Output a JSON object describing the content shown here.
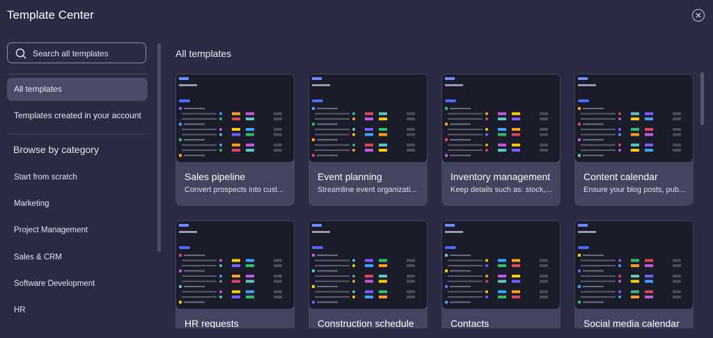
{
  "header": {
    "title": "Template Center"
  },
  "sidebar": {
    "search_placeholder": "Search all templates",
    "nav": [
      "All templates",
      "Templates created in your account"
    ],
    "section_title": "Browse by category",
    "categories": [
      "Start from scratch",
      "Marketing",
      "Project Management",
      "Sales & CRM",
      "Software Development",
      "HR"
    ]
  },
  "main": {
    "title": "All templates",
    "cards": [
      {
        "title": "Sales pipeline",
        "description": "Convert prospects into cust..."
      },
      {
        "title": "Event planning",
        "description": "Streamline event organizati..."
      },
      {
        "title": "Inventory management",
        "description": "Keep details such as: stock,..."
      },
      {
        "title": "Content calendar",
        "description": "Ensure your blog posts, pub..."
      },
      {
        "title": "HR requests"
      },
      {
        "title": "Construction schedule"
      },
      {
        "title": "Contacts"
      },
      {
        "title": "Social media calendar"
      }
    ]
  }
}
